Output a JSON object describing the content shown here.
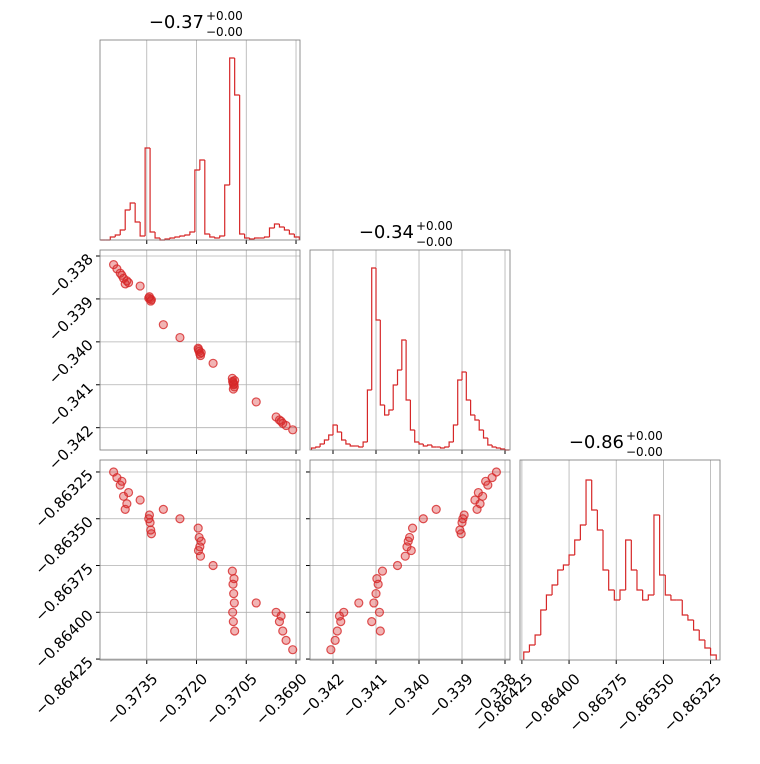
{
  "chart_data": [
    {
      "type": "histogram",
      "color": "#d62728",
      "title": "−0.37",
      "title_upper": "+0.00",
      "title_lower": "−0.00",
      "bins": [
        -0.3749,
        -0.37475,
        -0.3746,
        -0.37445,
        -0.3743,
        -0.37415,
        -0.374,
        -0.37385,
        -0.3737,
        -0.37355,
        -0.3734,
        -0.37325,
        -0.3731,
        -0.37295,
        -0.3728,
        -0.37265,
        -0.3725,
        -0.37235,
        -0.3722,
        -0.37205,
        -0.3719,
        -0.37175,
        -0.3716,
        -0.37145,
        -0.3713,
        -0.37115,
        -0.371,
        -0.37085,
        -0.3707,
        -0.37055,
        -0.3704,
        -0.37025,
        -0.3701,
        -0.36995,
        -0.3698,
        -0.36965,
        -0.3695,
        -0.36935,
        -0.3692,
        -0.36905,
        -0.3689
      ],
      "counts": [
        0,
        0,
        3,
        5,
        10,
        30,
        37,
        18,
        4,
        92,
        8,
        2,
        0,
        1,
        2,
        3,
        4,
        5,
        8,
        70,
        80,
        6,
        3,
        2,
        4,
        55,
        182,
        145,
        6,
        2,
        1,
        2,
        2,
        3,
        12,
        16,
        13,
        10,
        6,
        3
      ],
      "xlim": [
        -0.37491,
        -0.36888
      ],
      "ylim": [
        0,
        200
      ],
      "xticks": [
        -0.3735,
        -0.372,
        -0.3705,
        -0.369
      ],
      "grid": true
    },
    {
      "type": "scatter",
      "color": "#d62728",
      "x": [
        -0.3744,
        -0.3743,
        -0.3742,
        -0.3741,
        -0.37405,
        -0.37425,
        -0.3745,
        -0.37415,
        -0.37342,
        -0.3734,
        -0.37338,
        -0.37344,
        -0.37336,
        -0.37195,
        -0.37192,
        -0.3719,
        -0.37188,
        -0.37186,
        -0.37194,
        -0.37092,
        -0.3709,
        -0.37088,
        -0.37086,
        -0.37091,
        -0.37089,
        -0.37087,
        -0.37085,
        -0.3696,
        -0.3695,
        -0.3694,
        -0.36945,
        -0.3693,
        -0.3737,
        -0.373,
        -0.3725,
        -0.3715,
        -0.3702,
        -0.3691
      ],
      "y": [
        -0.3383,
        -0.3384,
        -0.33852,
        -0.33858,
        -0.33862,
        -0.33845,
        -0.3382,
        -0.33865,
        -0.33895,
        -0.339,
        -0.33905,
        -0.33898,
        -0.33902,
        -0.34015,
        -0.34022,
        -0.34028,
        -0.34032,
        -0.34025,
        -0.34018,
        -0.34085,
        -0.34095,
        -0.341,
        -0.34105,
        -0.34092,
        -0.3411,
        -0.34098,
        -0.3409,
        -0.34175,
        -0.34182,
        -0.3419,
        -0.34185,
        -0.34195,
        -0.3387,
        -0.3396,
        -0.3399,
        -0.3405,
        -0.3414,
        -0.34205
      ],
      "xlim": [
        -0.37491,
        -0.36888
      ],
      "ylim": [
        -0.34252,
        -0.33786
      ],
      "xticks": [
        -0.3735,
        -0.372,
        -0.3705,
        -0.369
      ],
      "yticks": [
        {
          "value": -0.338,
          "label": "−0.338"
        },
        {
          "value": -0.339,
          "label": "−0.339"
        },
        {
          "value": -0.34,
          "label": "−0.340"
        },
        {
          "value": -0.341,
          "label": "−0.341"
        },
        {
          "value": -0.342,
          "label": "−0.342"
        }
      ],
      "grid": true
    },
    {
      "type": "histogram",
      "color": "#d62728",
      "title": "−0.34",
      "title_upper": "+0.00",
      "title_lower": "−0.00",
      "bins": [
        -0.3425,
        -0.3424,
        -0.3423,
        -0.3422,
        -0.3421,
        -0.342,
        -0.3419,
        -0.3418,
        -0.3417,
        -0.3416,
        -0.3415,
        -0.3414,
        -0.3413,
        -0.3412,
        -0.3411,
        -0.341,
        -0.3409,
        -0.3408,
        -0.3407,
        -0.3406,
        -0.3405,
        -0.3404,
        -0.3403,
        -0.3402,
        -0.3401,
        -0.34,
        -0.3399,
        -0.3398,
        -0.3397,
        -0.3396,
        -0.3395,
        -0.3394,
        -0.3393,
        -0.3392,
        -0.3391,
        -0.339,
        -0.3389,
        -0.3388,
        -0.3387,
        -0.3386,
        -0.3385,
        -0.3384,
        -0.3383,
        -0.3382,
        -0.3381,
        -0.338,
        -0.3379
      ],
      "counts": [
        2,
        3,
        6,
        10,
        15,
        25,
        18,
        10,
        6,
        4,
        4,
        3,
        8,
        60,
        182,
        130,
        45,
        35,
        40,
        65,
        80,
        110,
        50,
        20,
        8,
        6,
        4,
        5,
        3,
        3,
        2,
        3,
        8,
        25,
        70,
        78,
        50,
        35,
        30,
        20,
        12,
        5,
        3,
        2,
        1,
        0
      ],
      "xlim": [
        -0.342535,
        -0.337884
      ],
      "ylim": [
        0,
        200
      ],
      "xticks": [
        -0.342,
        -0.341,
        -0.34,
        -0.339,
        -0.338
      ],
      "grid": true
    },
    {
      "type": "scatter",
      "color": "#d62728",
      "x": [
        -0.3744,
        -0.3743,
        -0.3742,
        -0.3741,
        -0.37405,
        -0.37425,
        -0.3745,
        -0.37415,
        -0.37342,
        -0.3734,
        -0.37338,
        -0.37344,
        -0.37336,
        -0.37195,
        -0.37192,
        -0.3719,
        -0.37188,
        -0.37186,
        -0.37194,
        -0.37092,
        -0.3709,
        -0.37088,
        -0.37086,
        -0.37091,
        -0.37089,
        -0.37087,
        -0.37085,
        -0.3696,
        -0.3695,
        -0.3694,
        -0.36945,
        -0.3693,
        -0.3737,
        -0.373,
        -0.3725,
        -0.3715,
        -0.3702,
        -0.3691
      ],
      "y": [
        -0.86328,
        -0.86332,
        -0.86338,
        -0.86342,
        -0.86336,
        -0.8633,
        -0.86325,
        -0.86345,
        -0.86348,
        -0.86352,
        -0.86356,
        -0.8635,
        -0.86358,
        -0.86355,
        -0.8636,
        -0.86365,
        -0.8637,
        -0.86362,
        -0.86367,
        -0.86378,
        -0.86385,
        -0.8639,
        -0.86395,
        -0.864,
        -0.86405,
        -0.86382,
        -0.8641,
        -0.864,
        -0.86405,
        -0.8641,
        -0.86402,
        -0.86415,
        -0.8634,
        -0.86345,
        -0.8635,
        -0.86375,
        -0.86395,
        -0.8642
      ],
      "xlim": [
        -0.37491,
        -0.36888
      ],
      "ylim": [
        -0.864255,
        -0.863186
      ],
      "xticks": [
        {
          "value": -0.3735,
          "label": "−0.3735"
        },
        {
          "value": -0.372,
          "label": "−0.3720"
        },
        {
          "value": -0.3705,
          "label": "−0.3705"
        },
        {
          "value": -0.369,
          "label": "−0.3690"
        }
      ],
      "yticks": [
        {
          "value": -0.86325,
          "label": "−0.86325"
        },
        {
          "value": -0.8635,
          "label": "−0.86350"
        },
        {
          "value": -0.86375,
          "label": "−0.86375"
        },
        {
          "value": -0.864,
          "label": "−0.86400"
        },
        {
          "value": -0.86425,
          "label": "−0.86425"
        }
      ],
      "grid": true
    },
    {
      "type": "scatter",
      "color": "#d62728",
      "x": [
        -0.3383,
        -0.3384,
        -0.33852,
        -0.33858,
        -0.33862,
        -0.33845,
        -0.3382,
        -0.33865,
        -0.33895,
        -0.339,
        -0.33905,
        -0.33898,
        -0.33902,
        -0.34015,
        -0.34022,
        -0.34028,
        -0.34032,
        -0.34025,
        -0.34018,
        -0.34085,
        -0.34095,
        -0.341,
        -0.34105,
        -0.34092,
        -0.3411,
        -0.34098,
        -0.3409,
        -0.34175,
        -0.34182,
        -0.3419,
        -0.34185,
        -0.34195,
        -0.3387,
        -0.3396,
        -0.3399,
        -0.3405,
        -0.3414,
        -0.34205
      ],
      "y": [
        -0.86328,
        -0.86332,
        -0.86338,
        -0.86342,
        -0.86336,
        -0.8633,
        -0.86325,
        -0.86345,
        -0.86348,
        -0.86352,
        -0.86356,
        -0.8635,
        -0.86358,
        -0.86355,
        -0.8636,
        -0.86365,
        -0.8637,
        -0.86362,
        -0.86367,
        -0.86378,
        -0.86385,
        -0.8639,
        -0.86395,
        -0.864,
        -0.86405,
        -0.86382,
        -0.8641,
        -0.864,
        -0.86405,
        -0.8641,
        -0.86402,
        -0.86415,
        -0.8634,
        -0.86345,
        -0.8635,
        -0.86375,
        -0.86395,
        -0.8642
      ],
      "xlim": [
        -0.342535,
        -0.337884
      ],
      "ylim": [
        -0.864255,
        -0.863186
      ],
      "xticks": [
        {
          "value": -0.342,
          "label": "−0.342"
        },
        {
          "value": -0.341,
          "label": "−0.341"
        },
        {
          "value": -0.34,
          "label": "−0.340"
        },
        {
          "value": -0.339,
          "label": "−0.339"
        },
        {
          "value": -0.338,
          "label": "−0.338"
        }
      ],
      "yticks": [
        -0.86325,
        -0.8635,
        -0.86375,
        -0.864,
        -0.86425
      ],
      "grid": true
    },
    {
      "type": "histogram",
      "color": "#d62728",
      "title": "−0.86",
      "title_upper": "+0.00",
      "title_lower": "−0.00",
      "bins": [
        -0.86424,
        -0.86421,
        -0.86418,
        -0.86415,
        -0.86412,
        -0.86409,
        -0.86406,
        -0.86403,
        -0.864,
        -0.86397,
        -0.86394,
        -0.86391,
        -0.86388,
        -0.86385,
        -0.86382,
        -0.86379,
        -0.86376,
        -0.86373,
        -0.8637,
        -0.86367,
        -0.86364,
        -0.86361,
        -0.86358,
        -0.86355,
        -0.86352,
        -0.86349,
        -0.86346,
        -0.86343,
        -0.8634,
        -0.86337,
        -0.86334,
        -0.86331,
        -0.86328,
        -0.86325,
        -0.86322
      ],
      "counts": [
        8,
        15,
        25,
        50,
        65,
        75,
        90,
        95,
        105,
        120,
        135,
        180,
        150,
        130,
        90,
        70,
        60,
        70,
        120,
        90,
        70,
        60,
        65,
        145,
        85,
        65,
        60,
        60,
        45,
        40,
        30,
        20,
        12,
        5
      ],
      "xlim": [
        -0.86426,
        -0.8632
      ],
      "ylim": [
        0,
        200
      ],
      "xticks": [
        {
          "value": -0.86425,
          "label": "−0.86425"
        },
        {
          "value": -0.864,
          "label": "−0.86400"
        },
        {
          "value": -0.86375,
          "label": "−0.86375"
        },
        {
          "value": -0.8635,
          "label": "−0.86350"
        },
        {
          "value": -0.86325,
          "label": "−0.86325"
        }
      ],
      "grid": true
    }
  ]
}
